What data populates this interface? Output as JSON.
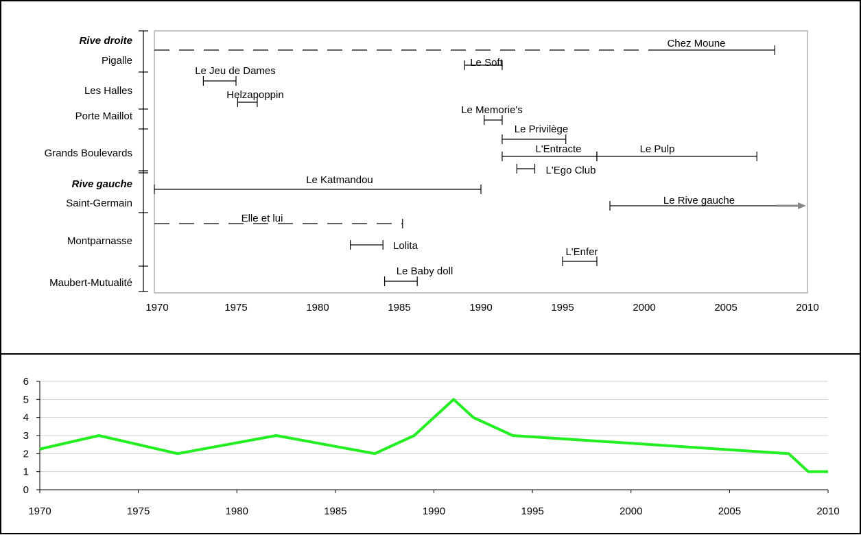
{
  "chart_data": [
    {
      "type": "timeline",
      "xlim": [
        1970,
        2010
      ],
      "x_ticks": [
        1970,
        1975,
        1980,
        1985,
        1990,
        1995,
        2000,
        2005,
        2010
      ],
      "y_groups": [
        {
          "label": "Rive droite",
          "header": true
        },
        {
          "label": "Pigalle"
        },
        {
          "label": "Les Halles"
        },
        {
          "label": "Porte Maillot"
        },
        {
          "label": "Grands Boulevards"
        },
        {
          "label": "Rive gauche",
          "header": true
        },
        {
          "label": "Saint-Germain"
        },
        {
          "label": "Montparnasse"
        },
        {
          "label": "Maubert-Mutualité"
        }
      ],
      "bars": [
        {
          "name": "Chez Moune",
          "start": 1970,
          "end": 2008,
          "dashed_until": 2000.8
        },
        {
          "name": "Le Jeu de Dames",
          "start": 1973,
          "end": 1975
        },
        {
          "name": "Le Soft",
          "start": 1989,
          "end": 1991.3
        },
        {
          "name": "Helzapoppin",
          "start": 1975.1,
          "end": 1976.3
        },
        {
          "name": "Le Memorie's",
          "start": 1990.2,
          "end": 1991.3
        },
        {
          "name": "Le Privilège",
          "start": 1991.3,
          "end": 1995.2
        },
        {
          "name": "L'Entracte",
          "start": 1991.3,
          "end": 1997.1
        },
        {
          "name": "Le Pulp",
          "start": 1997.1,
          "end": 2006.9
        },
        {
          "name": "L'Ego Club",
          "start": 1992.2,
          "end": 1993.3
        },
        {
          "name": "Le Katmandou",
          "start": 1970,
          "end": 1990
        },
        {
          "name": "Le Rive gauche",
          "start": 1997.9,
          "end": 2010,
          "arrow": true
        },
        {
          "name": "Elle et lui",
          "start": 1970,
          "end": 1985.2,
          "dashed": true
        },
        {
          "name": "Lolita",
          "start": 1982,
          "end": 1984
        },
        {
          "name": "L'Enfer",
          "start": 1995,
          "end": 1997.1
        },
        {
          "name": "Le Baby doll",
          "start": 1984.1,
          "end": 1986.1
        }
      ]
    },
    {
      "type": "line",
      "xlim": [
        1970,
        2010
      ],
      "ylim": [
        0,
        6
      ],
      "x_ticks": [
        1970,
        1975,
        1980,
        1985,
        1990,
        1995,
        2000,
        2005,
        2010
      ],
      "y_ticks": [
        0,
        1,
        2,
        3,
        4,
        5,
        6
      ],
      "series": [
        {
          "color": "#22ee22",
          "x": [
            1970,
            1973,
            1977,
            1982,
            1987,
            1989,
            1991,
            1992,
            1994,
            2008,
            2009,
            2010
          ],
          "y": [
            2.25,
            3,
            2,
            3,
            2,
            3,
            5,
            4,
            3,
            2,
            1,
            1
          ]
        }
      ],
      "grid": true
    }
  ]
}
